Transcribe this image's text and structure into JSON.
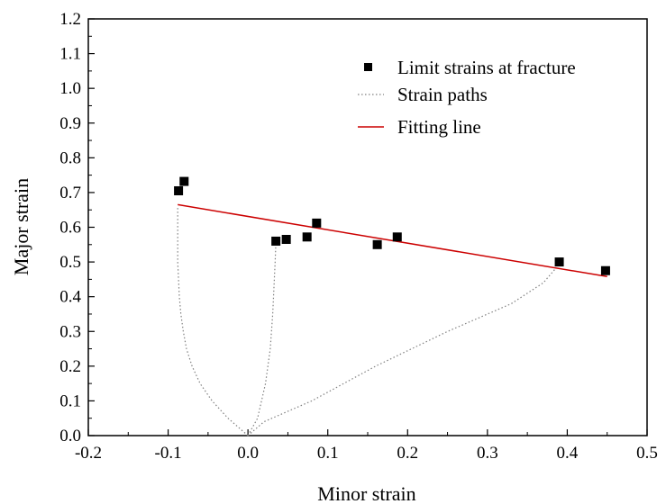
{
  "chart_data": {
    "type": "scatter",
    "xlabel": "Minor strain",
    "ylabel": "Major strain",
    "xlim": [
      -0.2,
      0.5
    ],
    "ylim": [
      0.0,
      1.2
    ],
    "xticks": [
      "-0.2",
      "-0.1",
      "0.0",
      "0.1",
      "0.2",
      "0.3",
      "0.4",
      "0.5"
    ],
    "yticks": [
      "0.0",
      "0.1",
      "0.2",
      "0.3",
      "0.4",
      "0.5",
      "0.6",
      "0.7",
      "0.8",
      "0.9",
      "1.0",
      "1.1",
      "1.2"
    ],
    "grid": false,
    "legend_position": "top-right",
    "series": [
      {
        "name": "Limit strains at fracture",
        "kind": "scatter",
        "marker": "square",
        "color": "#000000",
        "points": [
          [
            -0.087,
            0.705
          ],
          [
            -0.08,
            0.732
          ],
          [
            0.035,
            0.56
          ],
          [
            0.048,
            0.565
          ],
          [
            0.074,
            0.572
          ],
          [
            0.086,
            0.612
          ],
          [
            0.162,
            0.55
          ],
          [
            0.187,
            0.572
          ],
          [
            0.39,
            0.5
          ],
          [
            0.448,
            0.475
          ]
        ]
      },
      {
        "name": "Strain paths",
        "kind": "line",
        "style": "dotted",
        "color": "#808080",
        "paths": [
          [
            [
              0.0,
              0.0
            ],
            [
              -0.025,
              0.05
            ],
            [
              -0.045,
              0.1
            ],
            [
              -0.06,
              0.15
            ],
            [
              -0.07,
              0.2
            ],
            [
              -0.077,
              0.25
            ],
            [
              -0.081,
              0.3
            ],
            [
              -0.084,
              0.35
            ],
            [
              -0.086,
              0.4
            ],
            [
              -0.087,
              0.45
            ],
            [
              -0.088,
              0.5
            ],
            [
              -0.088,
              0.55
            ],
            [
              -0.088,
              0.6
            ],
            [
              -0.088,
              0.66
            ]
          ],
          [
            [
              0.0,
              0.0
            ],
            [
              0.012,
              0.05
            ],
            [
              0.022,
              0.15
            ],
            [
              0.028,
              0.25
            ],
            [
              0.031,
              0.35
            ],
            [
              0.033,
              0.45
            ],
            [
              0.034,
              0.5
            ],
            [
              0.035,
              0.555
            ]
          ],
          [
            [
              0.0,
              0.0
            ],
            [
              0.02,
              0.04
            ],
            [
              0.08,
              0.1
            ],
            [
              0.16,
              0.2
            ],
            [
              0.25,
              0.3
            ],
            [
              0.33,
              0.38
            ],
            [
              0.37,
              0.44
            ],
            [
              0.385,
              0.48
            ]
          ]
        ]
      },
      {
        "name": "Fitting line",
        "kind": "line",
        "style": "solid",
        "color": "#cc0000",
        "points": [
          [
            -0.088,
            0.665
          ],
          [
            0.45,
            0.458
          ]
        ]
      }
    ]
  }
}
